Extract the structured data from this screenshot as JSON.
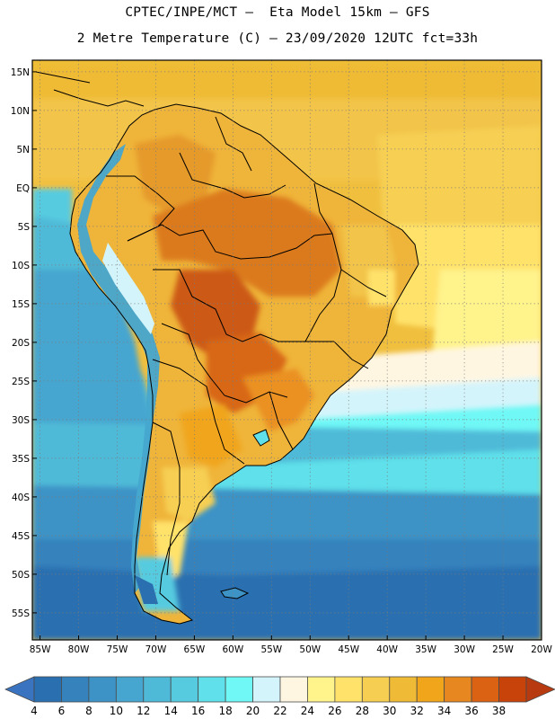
{
  "header": {
    "line1": "CPTEC/INPE/MCT –  Eta Model 15km – GFS",
    "line2": "2 Metre Temperature (C) – 23/09/2020 12UTC fct=33h"
  },
  "map": {
    "region": "South America",
    "projection": "lat-lon",
    "lon_range": [
      -86,
      -20
    ],
    "lat_range": [
      -58.5,
      16.5
    ],
    "graticule_interval_deg": 5,
    "lat_ticks": [
      {
        "value": 15,
        "label": "15N"
      },
      {
        "value": 10,
        "label": "10N"
      },
      {
        "value": 5,
        "label": "5N"
      },
      {
        "value": 0,
        "label": "EQ"
      },
      {
        "value": -5,
        "label": "5S"
      },
      {
        "value": -10,
        "label": "10S"
      },
      {
        "value": -15,
        "label": "15S"
      },
      {
        "value": -20,
        "label": "20S"
      },
      {
        "value": -25,
        "label": "25S"
      },
      {
        "value": -30,
        "label": "30S"
      },
      {
        "value": -35,
        "label": "35S"
      },
      {
        "value": -40,
        "label": "40S"
      },
      {
        "value": -45,
        "label": "45S"
      },
      {
        "value": -50,
        "label": "50S"
      },
      {
        "value": -55,
        "label": "55S"
      }
    ],
    "lon_ticks": [
      {
        "value": -85,
        "label": "85W"
      },
      {
        "value": -80,
        "label": "80W"
      },
      {
        "value": -75,
        "label": "75W"
      },
      {
        "value": -70,
        "label": "70W"
      },
      {
        "value": -65,
        "label": "65W"
      },
      {
        "value": -60,
        "label": "60W"
      },
      {
        "value": -55,
        "label": "55W"
      },
      {
        "value": -50,
        "label": "50W"
      },
      {
        "value": -45,
        "label": "45W"
      },
      {
        "value": -40,
        "label": "40W"
      },
      {
        "value": -35,
        "label": "35W"
      },
      {
        "value": -30,
        "label": "30W"
      },
      {
        "value": -25,
        "label": "25W"
      },
      {
        "value": -20,
        "label": "20W"
      }
    ]
  },
  "colorbar": {
    "units": "°C",
    "labels": [
      "4",
      "6",
      "8",
      "10",
      "12",
      "14",
      "16",
      "18",
      "20",
      "22",
      "24",
      "26",
      "28",
      "30",
      "32",
      "34",
      "36",
      "38"
    ],
    "bins": [
      {
        "color": "#2a6fb0"
      },
      {
        "color": "#3582bd"
      },
      {
        "color": "#3e93c6"
      },
      {
        "color": "#46a6cf"
      },
      {
        "color": "#4fbad8"
      },
      {
        "color": "#56cbe0"
      },
      {
        "color": "#5fe0ea"
      },
      {
        "color": "#6ff8f6"
      },
      {
        "color": "#d4f4fb"
      },
      {
        "color": "#fff6e2"
      },
      {
        "color": "#fff38c"
      },
      {
        "color": "#ffe26a"
      },
      {
        "color": "#f6cf52"
      },
      {
        "color": "#efbb36"
      },
      {
        "color": "#f0a51a"
      },
      {
        "color": "#e78720"
      },
      {
        "color": "#db6212"
      },
      {
        "color": "#c8430a"
      }
    ],
    "under_color": "#3a74c0",
    "over_color": "#b83a10"
  }
}
